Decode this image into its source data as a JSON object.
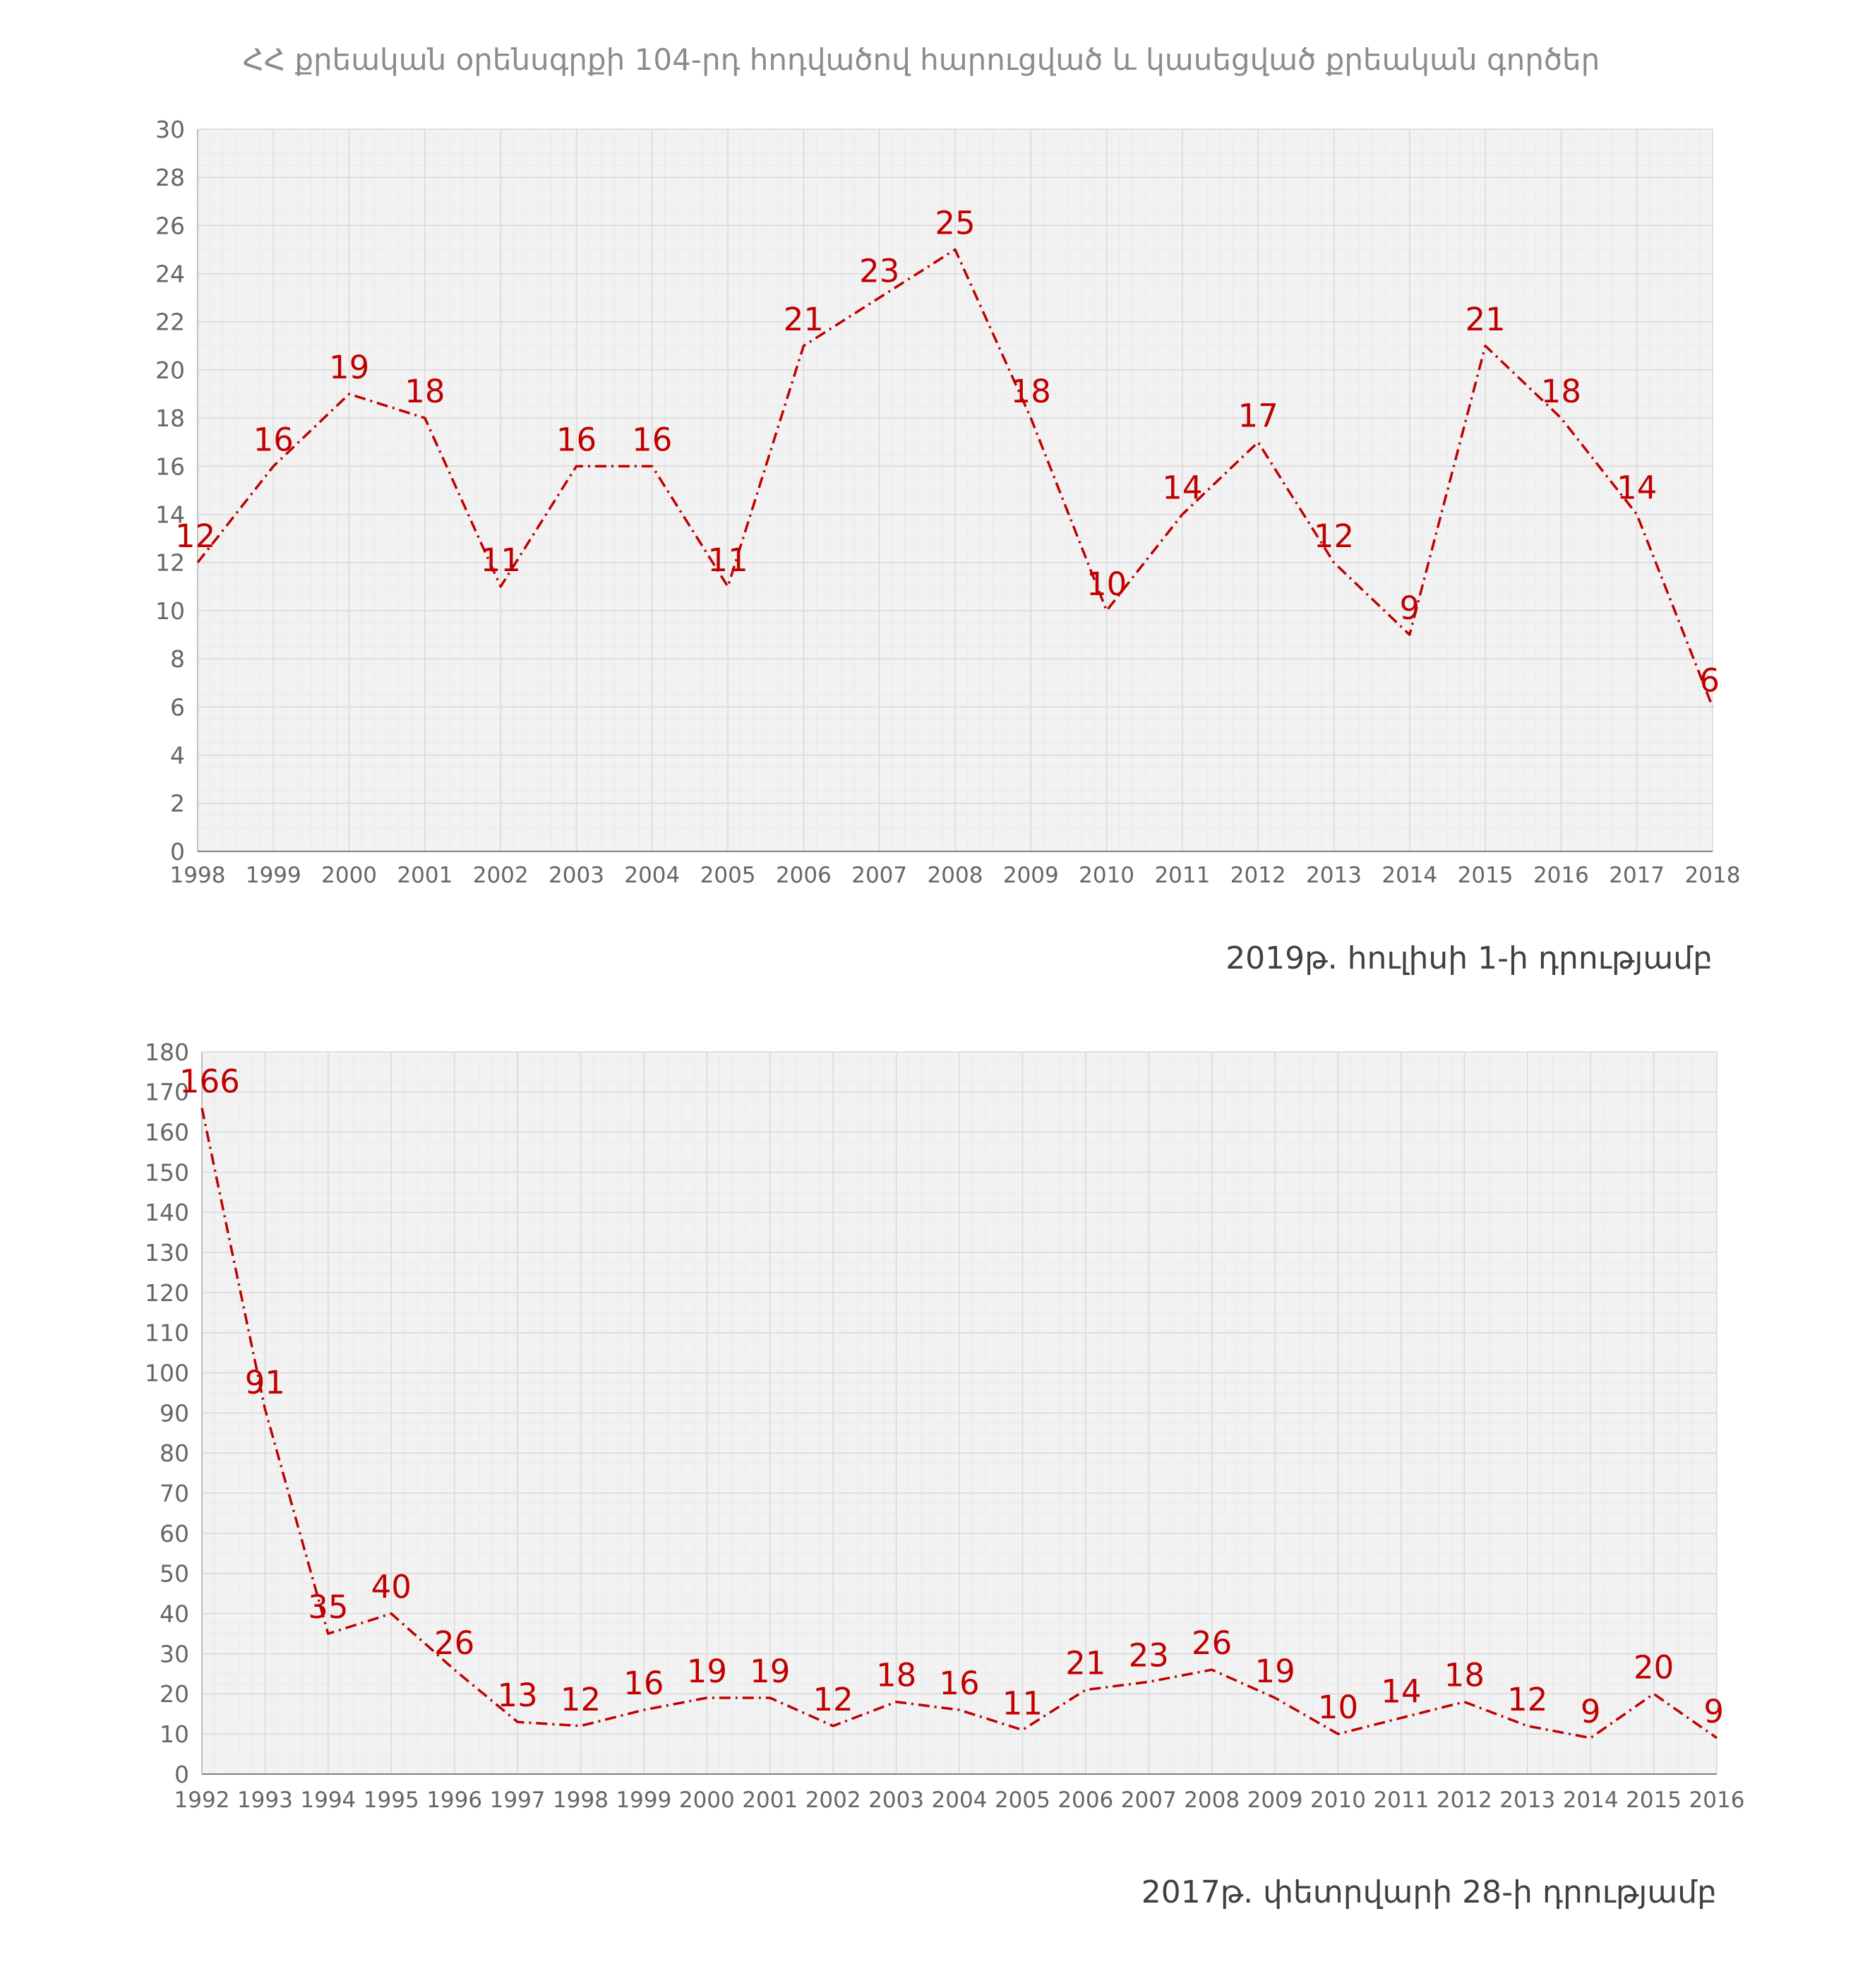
{
  "page": {
    "title": "ՀՀ քրեական օրենսգրքի 104-րդ հոդվածով հարուցված և կասեցված քրեական գործեր"
  },
  "colors": {
    "series": "#c00000",
    "plot_bg": "#f2f2f2",
    "grid_major": "#d9d9d9",
    "grid_minor": "#e9e9e9",
    "axis_text": "#666666",
    "title_text": "#8c8c8c",
    "caption_text": "#404040"
  },
  "chart_data": [
    {
      "type": "line",
      "caption": "2019թ. հուլիսի 1-ի դրությամբ",
      "x": [
        "1998",
        "1999",
        "2000",
        "2001",
        "2002",
        "2003",
        "2004",
        "2005",
        "2006",
        "2007",
        "2008",
        "2009",
        "2010",
        "2011",
        "2012",
        "2013",
        "2014",
        "2015",
        "2016",
        "2017",
        "2018"
      ],
      "series": [
        {
          "values": [
            12,
            16,
            19,
            18,
            11,
            16,
            16,
            11,
            21,
            23,
            25,
            18,
            10,
            14,
            17,
            12,
            9,
            21,
            18,
            14,
            6
          ]
        }
      ],
      "ylim": [
        0,
        30
      ],
      "y_ticks": [
        0,
        2,
        4,
        6,
        8,
        10,
        12,
        14,
        16,
        18,
        20,
        22,
        24,
        26,
        28,
        30
      ],
      "line_style": "dash-dot",
      "data_labels": true,
      "grid": true
    },
    {
      "type": "line",
      "caption": "2017թ. փետրվարի 28-ի դրությամբ",
      "x": [
        "1992",
        "1993",
        "1994",
        "1995",
        "1996",
        "1997",
        "1998",
        "1999",
        "2000",
        "2001",
        "2002",
        "2003",
        "2004",
        "2005",
        "2006",
        "2007",
        "2008",
        "2009",
        "2010",
        "2011",
        "2012",
        "2013",
        "2014",
        "2015",
        "2016"
      ],
      "series": [
        {
          "values": [
            166,
            91,
            35,
            40,
            26,
            13,
            12,
            16,
            19,
            19,
            12,
            18,
            16,
            11,
            21,
            23,
            26,
            19,
            10,
            14,
            18,
            12,
            9,
            20,
            9
          ]
        }
      ],
      "ylim": [
        0,
        180
      ],
      "y_ticks": [
        0,
        10,
        20,
        30,
        40,
        50,
        60,
        70,
        80,
        90,
        100,
        110,
        120,
        130,
        140,
        150,
        160,
        170,
        180
      ],
      "line_style": "dash-dot",
      "data_labels": true,
      "grid": true
    }
  ]
}
